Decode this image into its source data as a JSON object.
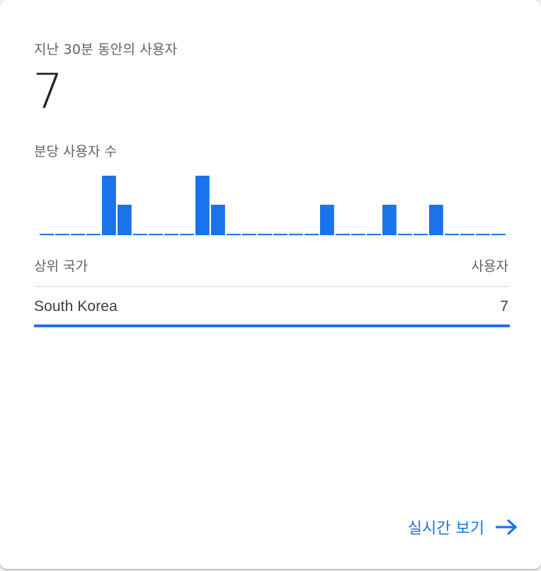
{
  "card": {
    "metric_label": "지난 30분 동안의 사용자",
    "metric_value": "7",
    "chart_label": "분당 사용자 수"
  },
  "chart_data": {
    "type": "bar",
    "title": "",
    "xlabel": "",
    "ylabel": "",
    "values": [
      0,
      0,
      0,
      0,
      2,
      1,
      0,
      0,
      0,
      0,
      2,
      1,
      0,
      0,
      0,
      0,
      0,
      0,
      1,
      0,
      0,
      0,
      1,
      0,
      0,
      1,
      0,
      0,
      0,
      0
    ],
    "ylim": [
      0,
      2
    ],
    "bar_color": "#1a73e8",
    "baseline_color": "#1a73e8",
    "grid": false
  },
  "table": {
    "header_country": "상위 국가",
    "header_users": "사용자",
    "rows": [
      {
        "country": "South Korea",
        "users": "7",
        "share": 1.0
      }
    ]
  },
  "footer": {
    "link_label": "실시간 보기",
    "link_icon": "arrow-right-icon"
  },
  "colors": {
    "accent": "#1a73e8",
    "text_primary": "#202124",
    "text_secondary": "#5f6368",
    "divider": "#dadce0"
  }
}
